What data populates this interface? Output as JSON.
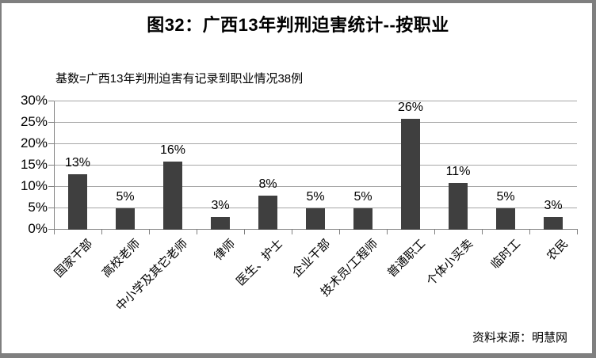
{
  "title": "图32：广西13年判刑迫害统计--按职业",
  "subtitle": "基数=广西13年判刑迫害有记录到职业情况38例",
  "source": "资料来源：明慧网",
  "colors": {
    "bar": "#3f3f3f",
    "gridline": "#a6a6a6",
    "axis": "#808080",
    "frame_border": "#7f7f7f",
    "text": "#000000",
    "background": "#ffffff"
  },
  "chart_data": {
    "type": "bar",
    "title": "图32：广西13年判刑迫害统计--按职业",
    "subtitle": "基数=广西13年判刑迫害有记录到职业情况38例",
    "source": "资料来源：明慧网",
    "categories": [
      "国家干部",
      "高校老师",
      "中小学及其它老师",
      "律师",
      "医生、护士",
      "企业干部",
      "技术员/工程师",
      "普通职工",
      "个体小买卖",
      "临时工",
      "农民"
    ],
    "values": [
      13,
      5,
      16,
      3,
      8,
      5,
      5,
      26,
      11,
      5,
      3
    ],
    "value_labels": [
      "13%",
      "5%",
      "16%",
      "3%",
      "8%",
      "5%",
      "5%",
      "26%",
      "11%",
      "5%",
      "3%"
    ],
    "xlabel": "",
    "ylabel": "",
    "ylim": [
      0,
      30
    ],
    "ytick_step": 5,
    "ytick_labels": [
      "0%",
      "5%",
      "10%",
      "15%",
      "20%",
      "25%",
      "30%"
    ],
    "grid": true,
    "legend": false,
    "x_tick_label_rotation_deg": 45
  }
}
